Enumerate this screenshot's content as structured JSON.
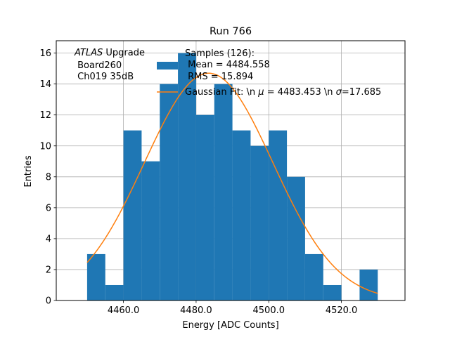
{
  "chart_data": {
    "type": "bar",
    "title": "Run 766",
    "xlabel": "Energy [ADC Counts]",
    "ylabel": "Entries",
    "xlim": [
      4441.5,
      4537.5
    ],
    "ylim": [
      0,
      16.8
    ],
    "grid": true,
    "x_ticks": [
      4460.0,
      4480.0,
      4500.0,
      4520.0
    ],
    "x_tick_labels": [
      "4460.0",
      "4480.0",
      "4500.0",
      "4520.0"
    ],
    "y_ticks": [
      0,
      2,
      4,
      6,
      8,
      10,
      12,
      14,
      16
    ],
    "y_tick_labels": [
      "0",
      "2",
      "4",
      "6",
      "8",
      "10",
      "12",
      "14",
      "16"
    ],
    "bin_width": 5,
    "bins": [
      {
        "x0": 4450,
        "value": 3
      },
      {
        "x0": 4455,
        "value": 1
      },
      {
        "x0": 4460,
        "value": 11
      },
      {
        "x0": 4465,
        "value": 9
      },
      {
        "x0": 4470,
        "value": 14
      },
      {
        "x0": 4475,
        "value": 16
      },
      {
        "x0": 4480,
        "value": 12
      },
      {
        "x0": 4485,
        "value": 14
      },
      {
        "x0": 4490,
        "value": 11
      },
      {
        "x0": 4495,
        "value": 10
      },
      {
        "x0": 4500,
        "value": 11
      },
      {
        "x0": 4505,
        "value": 8
      },
      {
        "x0": 4510,
        "value": 3
      },
      {
        "x0": 4515,
        "value": 1
      },
      {
        "x0": 4520,
        "value": 0
      },
      {
        "x0": 4525,
        "value": 2
      }
    ],
    "fit": {
      "type": "gaussian",
      "mu": 4483.453,
      "sigma": 17.685,
      "amplitude": 14.7,
      "x_range": [
        4450,
        4530
      ]
    },
    "annotation": {
      "line1_italic": "ATLAS",
      "line1_rest": " Upgrade",
      "line2": " Board260",
      "line3": " Ch019 35dB"
    },
    "legend": {
      "position": "top-right",
      "hist_label_lines": [
        "Samples (126):",
        " Mean = 4484.558",
        " RMS = 15.894"
      ],
      "fit_label_a": "Gaussian Fit: \\n ",
      "fit_label_mu": "μ",
      "fit_label_b": " = 4483.453 \\n ",
      "fit_label_sigma": "σ",
      "fit_label_c": "=17.685"
    },
    "colors": {
      "bars": "#1f77b4",
      "fit": "#ff7f0e",
      "grid": "#b0b0b0"
    }
  }
}
